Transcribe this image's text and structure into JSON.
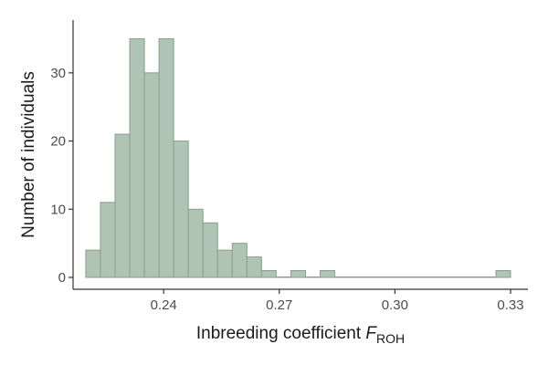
{
  "chart_data": {
    "type": "bar",
    "chart_subtype": "histogram",
    "xlabel": "Inbreeding coefficient ",
    "xlabel_var": "F",
    "xlabel_sub": "ROH",
    "ylabel": "Number of individuals",
    "xlim": [
      0.2165,
      0.3345
    ],
    "ylim": [
      0,
      36
    ],
    "x_ticks": [
      0.24,
      0.27,
      0.3,
      0.33
    ],
    "x_tick_labels": [
      "0.24",
      "0.27",
      "0.30",
      "0.33"
    ],
    "y_ticks": [
      0,
      10,
      20,
      30
    ],
    "y_tick_labels": [
      "0",
      "10",
      "20",
      "30"
    ],
    "bin_width": 0.0038,
    "bins_start": [
      0.2198,
      0.2236,
      0.2274,
      0.2312,
      0.235,
      0.2388,
      0.2426,
      0.2464,
      0.2502,
      0.254,
      0.2578,
      0.2616,
      0.2654,
      0.2692,
      0.273,
      0.2768,
      0.2806,
      0.2844,
      0.2882,
      0.292,
      0.2958,
      0.2996,
      0.3034,
      0.3072,
      0.311,
      0.3148,
      0.3186,
      0.3224,
      0.3262
    ],
    "values": [
      4,
      11,
      21,
      35,
      30,
      35,
      20,
      10,
      8,
      4,
      5,
      3,
      1,
      0,
      1,
      0,
      1,
      0,
      0,
      0,
      0,
      0,
      0,
      0,
      0,
      0,
      0,
      0,
      1
    ],
    "grid": false,
    "legend": "none",
    "colors": {
      "fill": "#b0c4b4",
      "stroke": "#8a9e8e",
      "axis": "#333333",
      "tick_text": "#4d4d4d"
    }
  }
}
